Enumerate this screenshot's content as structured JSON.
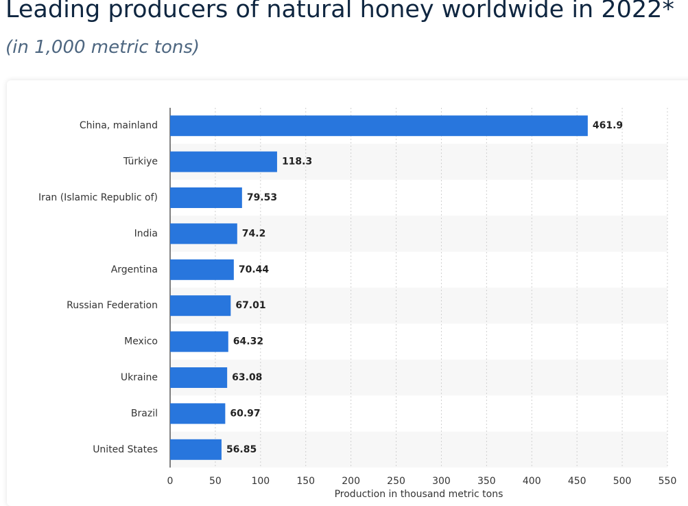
{
  "chart_data": {
    "type": "bar",
    "orientation": "horizontal",
    "title": "Leading producers of natural honey worldwide in 2022*",
    "subtitle": "(in 1,000 metric tons)",
    "x_label": "Production in thousand metric tons",
    "categories": [
      "China, mainland",
      "Türkiye",
      "Iran (Islamic Republic of)",
      "India",
      "Argentina",
      "Russian Federation",
      "Mexico",
      "Ukraine",
      "Brazil",
      "United States"
    ],
    "values": [
      461.9,
      118.3,
      79.53,
      74.2,
      70.44,
      67.01,
      64.32,
      63.08,
      60.97,
      56.85
    ],
    "color": "#2876dd",
    "xlim": [
      0,
      550
    ],
    "xticks": [
      0,
      50,
      100,
      150,
      200,
      250,
      300,
      350,
      400,
      450,
      500,
      550
    ],
    "grid": true
  }
}
